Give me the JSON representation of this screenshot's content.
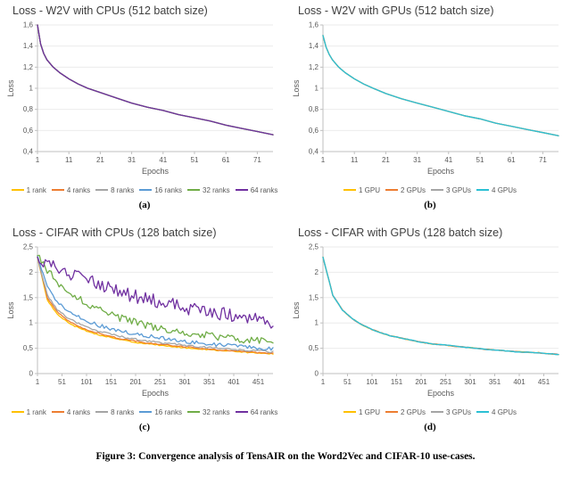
{
  "caption": "Figure 3: Convergence analysis of TensAIR on the Word2Vec and CIFAR-10 use-cases.",
  "colors": {
    "yellow": "#FFC000",
    "orange": "#ED7D31",
    "gray": "#A5A5A5",
    "blue": "#5B9BD5",
    "green": "#70AD47",
    "purple": "#7030A0",
    "cyan": "#2BC0D4"
  },
  "chart_data": [
    {
      "type": "line",
      "title": "Loss - W2V with CPUs (512 batch size)",
      "sublabel": "(a)",
      "xlabel": "Epochs",
      "ylabel": "Loss",
      "xlim": [
        1,
        76
      ],
      "ylim": [
        0.4,
        1.6
      ],
      "xticks": [
        1,
        11,
        21,
        31,
        41,
        51,
        61,
        71
      ],
      "yticks": [
        1.6,
        1.4,
        1.2,
        1,
        0.8,
        0.6,
        0.4
      ],
      "decimal_comma": true,
      "grid": true,
      "legend_position": "bottom",
      "x": [
        1,
        2,
        3,
        4,
        6,
        8,
        11,
        14,
        17,
        21,
        26,
        31,
        36,
        41,
        46,
        51,
        56,
        61,
        66,
        71,
        76
      ],
      "series": [
        {
          "name": "1 rank",
          "color": "#FFC000",
          "noise": 0,
          "values": [
            1.6,
            1.42,
            1.33,
            1.27,
            1.2,
            1.15,
            1.09,
            1.04,
            1.0,
            0.96,
            0.91,
            0.86,
            0.82,
            0.79,
            0.75,
            0.72,
            0.69,
            0.65,
            0.62,
            0.59,
            0.56
          ]
        },
        {
          "name": "4 ranks",
          "color": "#ED7D31",
          "noise": 0,
          "values": [
            1.6,
            1.42,
            1.33,
            1.27,
            1.2,
            1.15,
            1.09,
            1.04,
            1.0,
            0.96,
            0.91,
            0.86,
            0.82,
            0.79,
            0.75,
            0.72,
            0.69,
            0.65,
            0.62,
            0.59,
            0.56
          ]
        },
        {
          "name": "8 ranks",
          "color": "#A5A5A5",
          "noise": 0,
          "values": [
            1.6,
            1.42,
            1.33,
            1.27,
            1.2,
            1.15,
            1.09,
            1.04,
            1.0,
            0.96,
            0.91,
            0.86,
            0.82,
            0.79,
            0.75,
            0.72,
            0.69,
            0.65,
            0.62,
            0.59,
            0.56
          ]
        },
        {
          "name": "16 ranks",
          "color": "#5B9BD5",
          "noise": 0,
          "values": [
            1.6,
            1.42,
            1.33,
            1.27,
            1.2,
            1.15,
            1.09,
            1.04,
            1.0,
            0.96,
            0.91,
            0.86,
            0.82,
            0.79,
            0.75,
            0.72,
            0.69,
            0.65,
            0.62,
            0.59,
            0.56
          ]
        },
        {
          "name": "32 ranks",
          "color": "#70AD47",
          "noise": 0,
          "values": [
            1.6,
            1.42,
            1.33,
            1.27,
            1.2,
            1.15,
            1.09,
            1.04,
            1.0,
            0.96,
            0.91,
            0.86,
            0.82,
            0.79,
            0.75,
            0.72,
            0.69,
            0.65,
            0.62,
            0.59,
            0.56
          ]
        },
        {
          "name": "64 ranks",
          "color": "#7030A0",
          "noise": 0,
          "values": [
            1.6,
            1.42,
            1.33,
            1.27,
            1.2,
            1.15,
            1.09,
            1.04,
            1.0,
            0.96,
            0.91,
            0.86,
            0.82,
            0.79,
            0.75,
            0.72,
            0.69,
            0.65,
            0.62,
            0.59,
            0.56
          ]
        }
      ]
    },
    {
      "type": "line",
      "title": "Loss - W2V with GPUs (512 batch size)",
      "sublabel": "(b)",
      "xlabel": "Epochs",
      "ylabel": "Loss",
      "xlim": [
        1,
        76
      ],
      "ylim": [
        0.4,
        1.6
      ],
      "xticks": [
        1,
        11,
        21,
        31,
        41,
        51,
        61,
        71
      ],
      "yticks": [
        1.6,
        1.4,
        1.2,
        1,
        0.8,
        0.6,
        0.4
      ],
      "decimal_comma": true,
      "grid": true,
      "legend_position": "bottom",
      "x": [
        1,
        2,
        3,
        4,
        6,
        8,
        11,
        14,
        17,
        21,
        26,
        31,
        36,
        41,
        46,
        51,
        56,
        61,
        66,
        71,
        76
      ],
      "series": [
        {
          "name": "1 GPU",
          "color": "#FFC000",
          "noise": 0,
          "values": [
            1.5,
            1.39,
            1.32,
            1.27,
            1.2,
            1.15,
            1.09,
            1.04,
            1.0,
            0.95,
            0.9,
            0.86,
            0.82,
            0.78,
            0.74,
            0.71,
            0.67,
            0.64,
            0.61,
            0.58,
            0.55
          ]
        },
        {
          "name": "2 GPUs",
          "color": "#ED7D31",
          "noise": 0,
          "values": [
            1.5,
            1.39,
            1.32,
            1.27,
            1.2,
            1.15,
            1.09,
            1.04,
            1.0,
            0.95,
            0.9,
            0.86,
            0.82,
            0.78,
            0.74,
            0.71,
            0.67,
            0.64,
            0.61,
            0.58,
            0.55
          ]
        },
        {
          "name": "3 GPUs",
          "color": "#A5A5A5",
          "noise": 0,
          "values": [
            1.5,
            1.39,
            1.32,
            1.27,
            1.2,
            1.15,
            1.09,
            1.04,
            1.0,
            0.95,
            0.9,
            0.86,
            0.82,
            0.78,
            0.74,
            0.71,
            0.67,
            0.64,
            0.61,
            0.58,
            0.55
          ]
        },
        {
          "name": "4 GPUs",
          "color": "#2BC0D4",
          "noise": 0,
          "values": [
            1.5,
            1.39,
            1.32,
            1.27,
            1.2,
            1.15,
            1.09,
            1.04,
            1.0,
            0.95,
            0.9,
            0.86,
            0.82,
            0.78,
            0.74,
            0.71,
            0.67,
            0.64,
            0.61,
            0.58,
            0.55
          ]
        }
      ]
    },
    {
      "type": "line",
      "title": "Loss - CIFAR with CPUs (128 batch size)",
      "sublabel": "(c)",
      "xlabel": "Epochs",
      "ylabel": "Loss",
      "xlim": [
        1,
        481
      ],
      "ylim": [
        0,
        2.5
      ],
      "xticks": [
        1,
        51,
        101,
        151,
        201,
        251,
        301,
        351,
        401,
        451
      ],
      "yticks": [
        2.5,
        2,
        1.5,
        1,
        0.5,
        0
      ],
      "decimal_comma": true,
      "grid": true,
      "legend_position": "bottom",
      "x": [
        1,
        21,
        41,
        61,
        81,
        101,
        121,
        141,
        161,
        181,
        201,
        221,
        241,
        261,
        281,
        301,
        321,
        341,
        361,
        381,
        401,
        421,
        441,
        461,
        481
      ],
      "series": [
        {
          "name": "1 rank",
          "color": "#FFC000",
          "noise": 0.008,
          "values": [
            2.3,
            1.45,
            1.18,
            1.02,
            0.92,
            0.84,
            0.78,
            0.73,
            0.69,
            0.65,
            0.62,
            0.59,
            0.57,
            0.55,
            0.53,
            0.51,
            0.49,
            0.48,
            0.46,
            0.45,
            0.44,
            0.42,
            0.41,
            0.4,
            0.39
          ]
        },
        {
          "name": "4 ranks",
          "color": "#ED7D31",
          "noise": 0.008,
          "values": [
            2.3,
            1.5,
            1.22,
            1.06,
            0.95,
            0.87,
            0.81,
            0.76,
            0.71,
            0.67,
            0.64,
            0.61,
            0.59,
            0.57,
            0.55,
            0.53,
            0.51,
            0.49,
            0.48,
            0.46,
            0.45,
            0.44,
            0.42,
            0.41,
            0.4
          ]
        },
        {
          "name": "8 ranks",
          "color": "#A5A5A5",
          "noise": 0.012,
          "values": [
            2.3,
            1.55,
            1.27,
            1.11,
            1.0,
            0.92,
            0.85,
            0.8,
            0.75,
            0.71,
            0.68,
            0.65,
            0.62,
            0.6,
            0.58,
            0.56,
            0.54,
            0.52,
            0.51,
            0.49,
            0.48,
            0.46,
            0.45,
            0.44,
            0.43
          ]
        },
        {
          "name": "16 ranks",
          "color": "#5B9BD5",
          "noise": 0.025,
          "values": [
            2.32,
            1.7,
            1.42,
            1.25,
            1.13,
            1.04,
            0.97,
            0.91,
            0.86,
            0.82,
            0.78,
            0.75,
            0.72,
            0.69,
            0.67,
            0.64,
            0.62,
            0.6,
            0.58,
            0.56,
            0.55,
            0.53,
            0.51,
            0.5,
            0.48
          ]
        },
        {
          "name": "32 ranks",
          "color": "#70AD47",
          "noise": 0.05,
          "values": [
            2.33,
            2.05,
            1.82,
            1.64,
            1.5,
            1.38,
            1.28,
            1.2,
            1.13,
            1.07,
            1.01,
            0.96,
            0.92,
            0.88,
            0.85,
            0.82,
            0.79,
            0.76,
            0.74,
            0.71,
            0.69,
            0.67,
            0.65,
            0.63,
            0.61
          ]
        },
        {
          "name": "64 ranks",
          "color": "#7030A0",
          "noise": 0.09,
          "values": [
            2.3,
            2.18,
            2.08,
            2.0,
            1.92,
            1.84,
            1.77,
            1.7,
            1.64,
            1.58,
            1.53,
            1.48,
            1.43,
            1.39,
            1.35,
            1.31,
            1.27,
            1.24,
            1.2,
            1.17,
            1.14,
            1.11,
            1.08,
            1.05,
            1.02
          ]
        }
      ]
    },
    {
      "type": "line",
      "title": "Loss - CIFAR with GPUs (128 batch size)",
      "sublabel": "(d)",
      "xlabel": "Epochs",
      "ylabel": "Loss",
      "xlim": [
        1,
        481
      ],
      "ylim": [
        0,
        2.5
      ],
      "xticks": [
        1,
        51,
        101,
        151,
        201,
        251,
        301,
        351,
        401,
        451
      ],
      "yticks": [
        2.5,
        2,
        1.5,
        1,
        0.5,
        0
      ],
      "decimal_comma": true,
      "grid": true,
      "legend_position": "bottom",
      "x": [
        1,
        21,
        41,
        61,
        81,
        101,
        121,
        141,
        161,
        181,
        201,
        221,
        241,
        261,
        281,
        301,
        321,
        341,
        361,
        381,
        401,
        421,
        441,
        461,
        481
      ],
      "series": [
        {
          "name": "1 GPU",
          "color": "#FFC000",
          "noise": 0.005,
          "values": [
            2.3,
            1.55,
            1.25,
            1.08,
            0.96,
            0.87,
            0.8,
            0.74,
            0.7,
            0.66,
            0.62,
            0.59,
            0.57,
            0.55,
            0.53,
            0.51,
            0.49,
            0.47,
            0.46,
            0.44,
            0.43,
            0.42,
            0.41,
            0.39,
            0.38
          ]
        },
        {
          "name": "2 GPUs",
          "color": "#ED7D31",
          "noise": 0.005,
          "values": [
            2.3,
            1.55,
            1.25,
            1.08,
            0.96,
            0.87,
            0.8,
            0.74,
            0.7,
            0.66,
            0.62,
            0.59,
            0.57,
            0.55,
            0.53,
            0.51,
            0.49,
            0.47,
            0.46,
            0.44,
            0.43,
            0.42,
            0.41,
            0.39,
            0.38
          ]
        },
        {
          "name": "3 GPUs",
          "color": "#A5A5A5",
          "noise": 0.005,
          "values": [
            2.3,
            1.55,
            1.25,
            1.08,
            0.96,
            0.87,
            0.8,
            0.74,
            0.7,
            0.66,
            0.62,
            0.59,
            0.57,
            0.55,
            0.53,
            0.51,
            0.49,
            0.47,
            0.46,
            0.44,
            0.43,
            0.42,
            0.41,
            0.39,
            0.38
          ]
        },
        {
          "name": "4 GPUs",
          "color": "#2BC0D4",
          "noise": 0.005,
          "values": [
            2.3,
            1.55,
            1.25,
            1.08,
            0.96,
            0.87,
            0.8,
            0.74,
            0.7,
            0.66,
            0.62,
            0.59,
            0.57,
            0.55,
            0.53,
            0.51,
            0.49,
            0.47,
            0.46,
            0.44,
            0.43,
            0.42,
            0.41,
            0.39,
            0.38
          ]
        }
      ]
    }
  ]
}
